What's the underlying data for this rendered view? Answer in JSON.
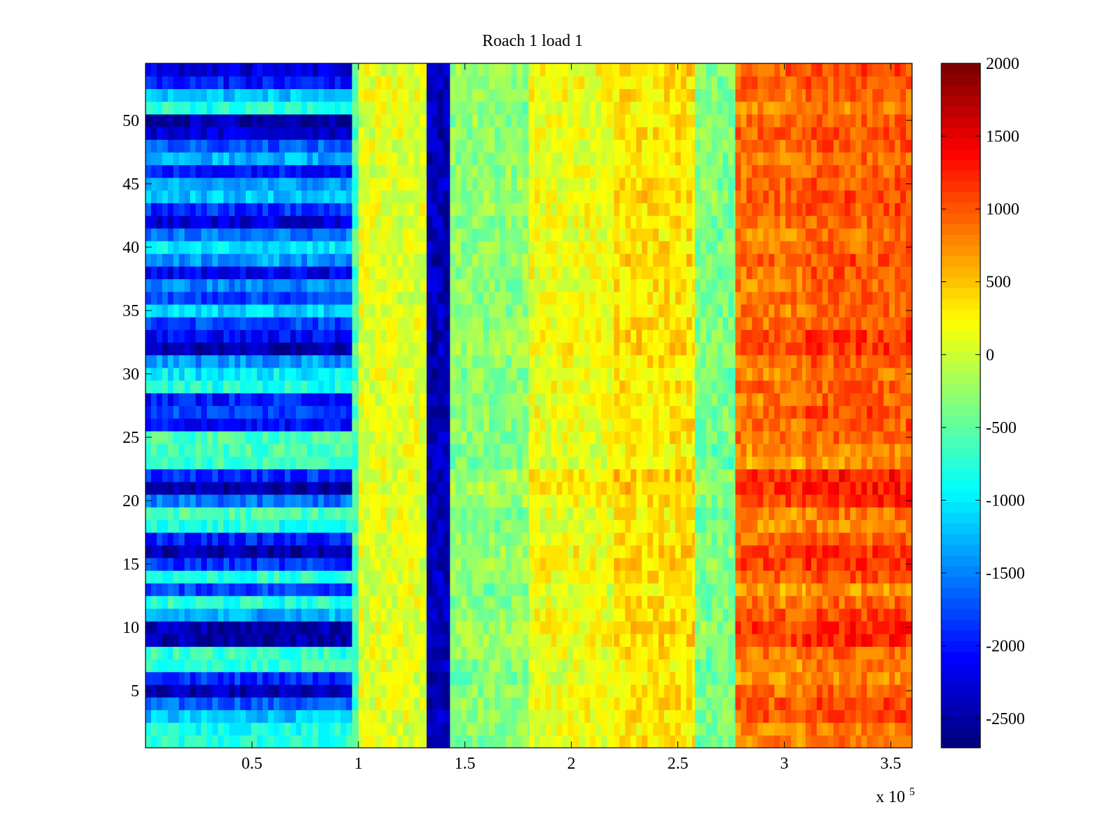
{
  "chart_data": {
    "type": "heatmap",
    "title": "Roach 1 load 1",
    "xlabel": "",
    "ylabel": "",
    "x_multiplier_label": "x 10",
    "x_multiplier_exponent": "5",
    "xlim": [
      0,
      360000
    ],
    "ylim": [
      0.5,
      54.5
    ],
    "x_ticks": [
      {
        "value": 50000,
        "label": "0.5"
      },
      {
        "value": 100000,
        "label": "1"
      },
      {
        "value": 150000,
        "label": "1.5"
      },
      {
        "value": 200000,
        "label": "2"
      },
      {
        "value": 250000,
        "label": "2.5"
      },
      {
        "value": 300000,
        "label": "3"
      },
      {
        "value": 350000,
        "label": "3.5"
      }
    ],
    "y_ticks": [
      {
        "value": 5,
        "label": "5"
      },
      {
        "value": 10,
        "label": "10"
      },
      {
        "value": 15,
        "label": "15"
      },
      {
        "value": 20,
        "label": "20"
      },
      {
        "value": 25,
        "label": "25"
      },
      {
        "value": 30,
        "label": "30"
      },
      {
        "value": 35,
        "label": "35"
      },
      {
        "value": 40,
        "label": "40"
      },
      {
        "value": 45,
        "label": "45"
      },
      {
        "value": 50,
        "label": "50"
      }
    ],
    "colorbar": {
      "colormap": "jet",
      "clim": [
        -2700,
        2000
      ],
      "ticks": [
        {
          "value": 2000,
          "label": "2000"
        },
        {
          "value": 1500,
          "label": "1500"
        },
        {
          "value": 1000,
          "label": "1000"
        },
        {
          "value": 500,
          "label": "500"
        },
        {
          "value": 0,
          "label": "0"
        },
        {
          "value": -500,
          "label": "-500"
        },
        {
          "value": -1000,
          "label": "-1000"
        },
        {
          "value": -1500,
          "label": "-1500"
        },
        {
          "value": -2000,
          "label": "-2000"
        },
        {
          "value": -2500,
          "label": "-2500"
        }
      ]
    },
    "rows": 54,
    "x_segments": [
      {
        "x0": 0,
        "x1": 97000,
        "level": "left-band"
      },
      {
        "x0": 97000,
        "x1": 100000,
        "level": -600
      },
      {
        "x0": 100000,
        "x1": 132000,
        "level": 100
      },
      {
        "x0": 132000,
        "x1": 143000,
        "level": -2450
      },
      {
        "x0": 143000,
        "x1": 180000,
        "level": -350
      },
      {
        "x0": 180000,
        "x1": 220000,
        "level": 100
      },
      {
        "x0": 220000,
        "x1": 258000,
        "level": 300
      },
      {
        "x0": 258000,
        "x1": 277000,
        "level": -450
      },
      {
        "x0": 277000,
        "x1": 310000,
        "level": 750
      },
      {
        "x0": 310000,
        "x1": 360000,
        "level": 850
      }
    ],
    "row_levels_left": [
      -800,
      -850,
      -1200,
      -1700,
      -2500,
      -1900,
      -700,
      -700,
      -2500,
      -2500,
      -1300,
      -800,
      -1800,
      -800,
      -1900,
      -2500,
      -2000,
      -800,
      -600,
      -1600,
      -2500,
      -1900,
      -700,
      -600,
      -600,
      -2100,
      -1800,
      -2000,
      -800,
      -1000,
      -1400,
      -2500,
      -2100,
      -1800,
      -1100,
      -1800,
      -1500,
      -2200,
      -1400,
      -1000,
      -1600,
      -2300,
      -1900,
      -1200,
      -1400,
      -2000,
      -1300,
      -1700,
      -2300,
      -2500,
      -800,
      -1200,
      -2000,
      -2300
    ],
    "row_offsets_right": [
      50,
      20,
      250,
      250,
      150,
      -50,
      0,
      100,
      400,
      400,
      250,
      100,
      -100,
      250,
      350,
      350,
      100,
      -50,
      0,
      350,
      450,
      450,
      -100,
      -50,
      100,
      150,
      200,
      100,
      150,
      50,
      150,
      350,
      300,
      150,
      100,
      150,
      100,
      150,
      200,
      100,
      50,
      150,
      200,
      250,
      200,
      150,
      100,
      150,
      200,
      150,
      0,
      150,
      200,
      250
    ],
    "source_note": ""
  }
}
